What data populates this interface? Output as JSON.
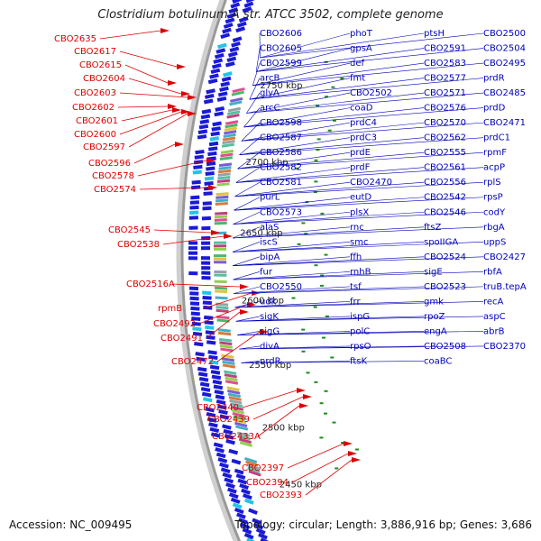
{
  "title": "Clostridium botulinum A str. ATCC 3502, complete genome",
  "accession": "Accession: NC_009495",
  "summary": "Topology: circular; Length: 3,886,916 bp; Genes: 3,686",
  "colors": {
    "left_label": "#dd0000",
    "right_label": "#0000bb",
    "backbone": "#999999",
    "cds": "#1a1ad6",
    "gc_skew": "#1e8c1e"
  },
  "kbp_ticks": [
    "2750 kbp",
    "2700 kbp",
    "2650 kbp",
    "2600 kbp",
    "2550 kbp",
    "2500 kbp",
    "2450 kbp"
  ],
  "left_labels": [
    "CBO2635",
    "CBO2617",
    "CBO2615",
    "CBO2604",
    "CBO2603",
    "CBO2602",
    "CBO2601",
    "CBO2600",
    "CBO2597",
    "CBO2596",
    "CBO2578",
    "CBO2574",
    "CBO2545",
    "CBO2538",
    "CBO2516A",
    "rpmB",
    "CBO2492",
    "CBO2491",
    "CBO2472",
    "CBO2440",
    "CBO2439",
    "CBO2433A",
    "CBO2397",
    "CBO2394",
    "CBO2393"
  ],
  "right_labels": [
    "CBO2606",
    "CBO2605",
    "CBO2599",
    "arcB",
    "glyA",
    "arcC",
    "CBO2598",
    "CBO2587",
    "CBO2586",
    "CBO2582",
    "CBO2581",
    "purL",
    "CBO2573",
    "alaS",
    "iscS",
    "bipA",
    "fur",
    "CBO2550",
    "udk",
    "sigK",
    "sigG",
    "divA",
    "nrdR",
    "phoT",
    "gpsA",
    "def",
    "fmt",
    "CBO2502",
    "coaD",
    "prdC4",
    "prdC3",
    "prdE",
    "prdF",
    "CBO2470",
    "eutD",
    "plsX",
    "rnc",
    "smc",
    "ffh",
    "rnhB",
    "tsf",
    "frr",
    "ispG",
    "polC",
    "rpsO",
    "ftsK",
    "ptsH",
    "CBO2591",
    "CBO2583",
    "CBO2577",
    "CBO2571",
    "CBO2576",
    "CBO2570",
    "CBO2562",
    "CBO2555",
    "CBO2561",
    "CBO2556",
    "CBO2542",
    "CBO2546",
    "ftsZ",
    "spoIIGA",
    "CBO2524",
    "sigE",
    "CBO2523",
    "gmk",
    "rpoZ",
    "engA",
    "CBO2508",
    "coaBC",
    "CBO2500",
    "CBO2504",
    "CBO2495",
    "prdR",
    "CBO2485",
    "prdD",
    "CBO2471",
    "prdC1",
    "rpmF",
    "acpP",
    "rplS",
    "rpsP",
    "codY",
    "rbgA",
    "uppS",
    "CBO2427",
    "rbfA",
    "truB.tepA",
    "recA",
    "aspC",
    "abrB",
    "CBO2370"
  ]
}
